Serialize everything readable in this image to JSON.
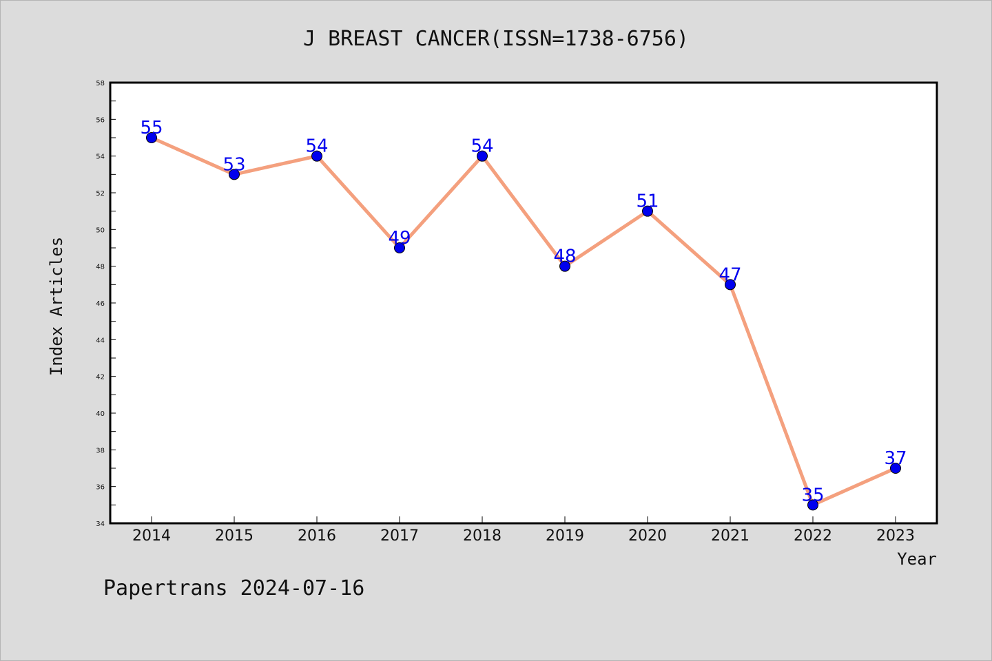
{
  "chart_data": {
    "type": "line",
    "title": "J BREAST CANCER(ISSN=1738-6756)",
    "xlabel": "Year",
    "ylabel": "Index Articles",
    "categories": [
      "2014",
      "2015",
      "2016",
      "2017",
      "2018",
      "2019",
      "2020",
      "2021",
      "2022",
      "2023"
    ],
    "series": [
      {
        "values": [
          55,
          53,
          54,
          49,
          54,
          48,
          51,
          47,
          35,
          37
        ]
      }
    ],
    "ylim": [
      34,
      58
    ],
    "yticks": [
      34,
      36,
      38,
      40,
      42,
      44,
      46,
      48,
      50,
      52,
      54,
      56,
      58
    ],
    "grid": false,
    "line_color": "#f4a07e",
    "marker_color": "#0000ee",
    "data_label_color": "#0000ee"
  },
  "footer": {
    "text": "Papertrans 2024-07-16"
  }
}
